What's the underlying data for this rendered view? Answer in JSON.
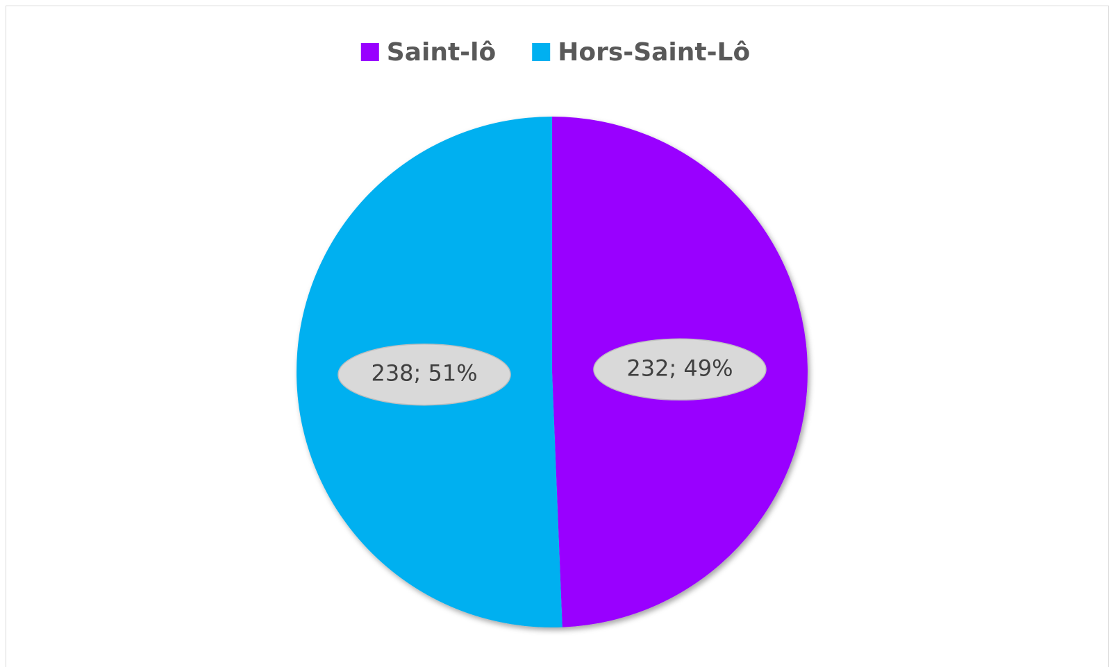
{
  "chart_data": {
    "type": "pie",
    "series": [
      {
        "name": "Saint-lô",
        "color": "#9900ff",
        "values": [
          232
        ],
        "value_labels": [
          "232; 49%"
        ]
      },
      {
        "name": "Hors-Saint-Lô",
        "color": "#00b0f0",
        "values": [
          238
        ],
        "value_labels": [
          "238; 51%"
        ]
      }
    ],
    "legend": "top"
  }
}
